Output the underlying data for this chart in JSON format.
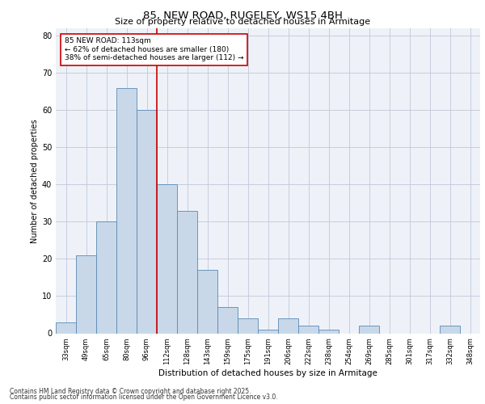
{
  "title1": "85, NEW ROAD, RUGELEY, WS15 4BH",
  "title2": "Size of property relative to detached houses in Armitage",
  "xlabel": "Distribution of detached houses by size in Armitage",
  "ylabel": "Number of detached properties",
  "categories": [
    "33sqm",
    "49sqm",
    "65sqm",
    "80sqm",
    "96sqm",
    "112sqm",
    "128sqm",
    "143sqm",
    "159sqm",
    "175sqm",
    "191sqm",
    "206sqm",
    "222sqm",
    "238sqm",
    "254sqm",
    "269sqm",
    "285sqm",
    "301sqm",
    "317sqm",
    "332sqm",
    "348sqm"
  ],
  "values": [
    3,
    21,
    30,
    66,
    60,
    40,
    33,
    17,
    7,
    4,
    1,
    4,
    2,
    1,
    0,
    2,
    0,
    0,
    0,
    2,
    0
  ],
  "bar_color": "#c8d8e8",
  "bar_edge_color": "#5a8ab5",
  "grid_color": "#c0c8d8",
  "bg_color": "#eef2f8",
  "annotation_text": "85 NEW ROAD: 113sqm\n← 62% of detached houses are smaller (180)\n38% of semi-detached houses are larger (112) →",
  "annotation_box_color": "#ffffff",
  "annotation_box_edge": "#cc0000",
  "vline_x_index": 5,
  "vline_color": "#cc0000",
  "ylim": [
    0,
    82
  ],
  "footer1": "Contains HM Land Registry data © Crown copyright and database right 2025.",
  "footer2": "Contains public sector information licensed under the Open Government Licence v3.0."
}
